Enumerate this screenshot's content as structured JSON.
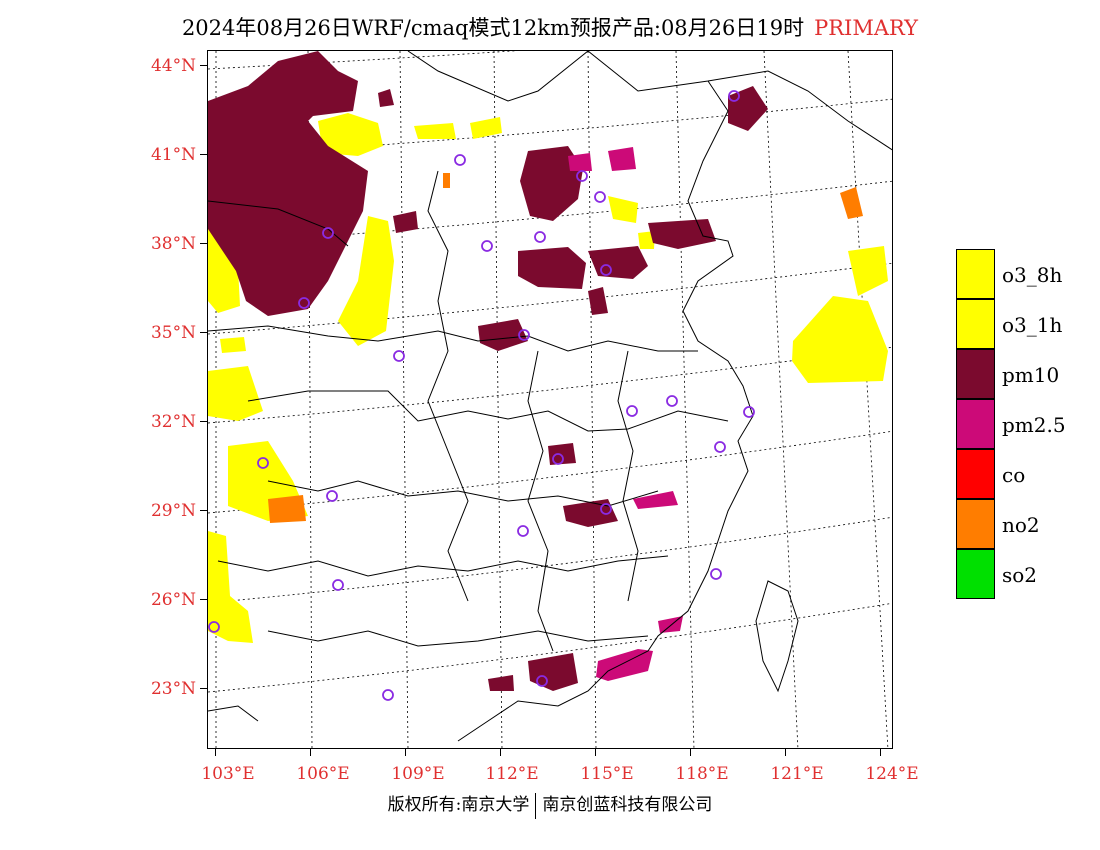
{
  "title": {
    "main": "2024年08月26日WRF/cmaq模式12km预报产品:08月26日19时",
    "tag": "PRIMARY"
  },
  "axes": {
    "lat_labels": [
      "44°N",
      "41°N",
      "38°N",
      "35°N",
      "32°N",
      "29°N",
      "26°N",
      "23°N"
    ],
    "lon_labels": [
      "103°E",
      "106°E",
      "109°E",
      "112°E",
      "115°E",
      "118°E",
      "121°E",
      "124°E"
    ]
  },
  "legend": {
    "items": [
      {
        "label": "o3_8h",
        "color": "#ffff00"
      },
      {
        "label": "o3_1h",
        "color": "#ffff00"
      },
      {
        "label": "pm10",
        "color": "#7b0a2e"
      },
      {
        "label": "pm2.5",
        "color": "#cc0a78"
      },
      {
        "label": "co",
        "color": "#ff0000"
      },
      {
        "label": "no2",
        "color": "#ff7d00"
      },
      {
        "label": "so2",
        "color": "#00e000"
      }
    ]
  },
  "colors": {
    "pm10": "#7b0a2e",
    "pm25": "#cc0a78",
    "o3": "#ffff00",
    "no2": "#ff7d00",
    "station": "#8a2be2",
    "axis_label": "#e03030"
  },
  "footer": {
    "left": "版权所有:南京大学",
    "right": "南京创蓝科技有限公司"
  }
}
